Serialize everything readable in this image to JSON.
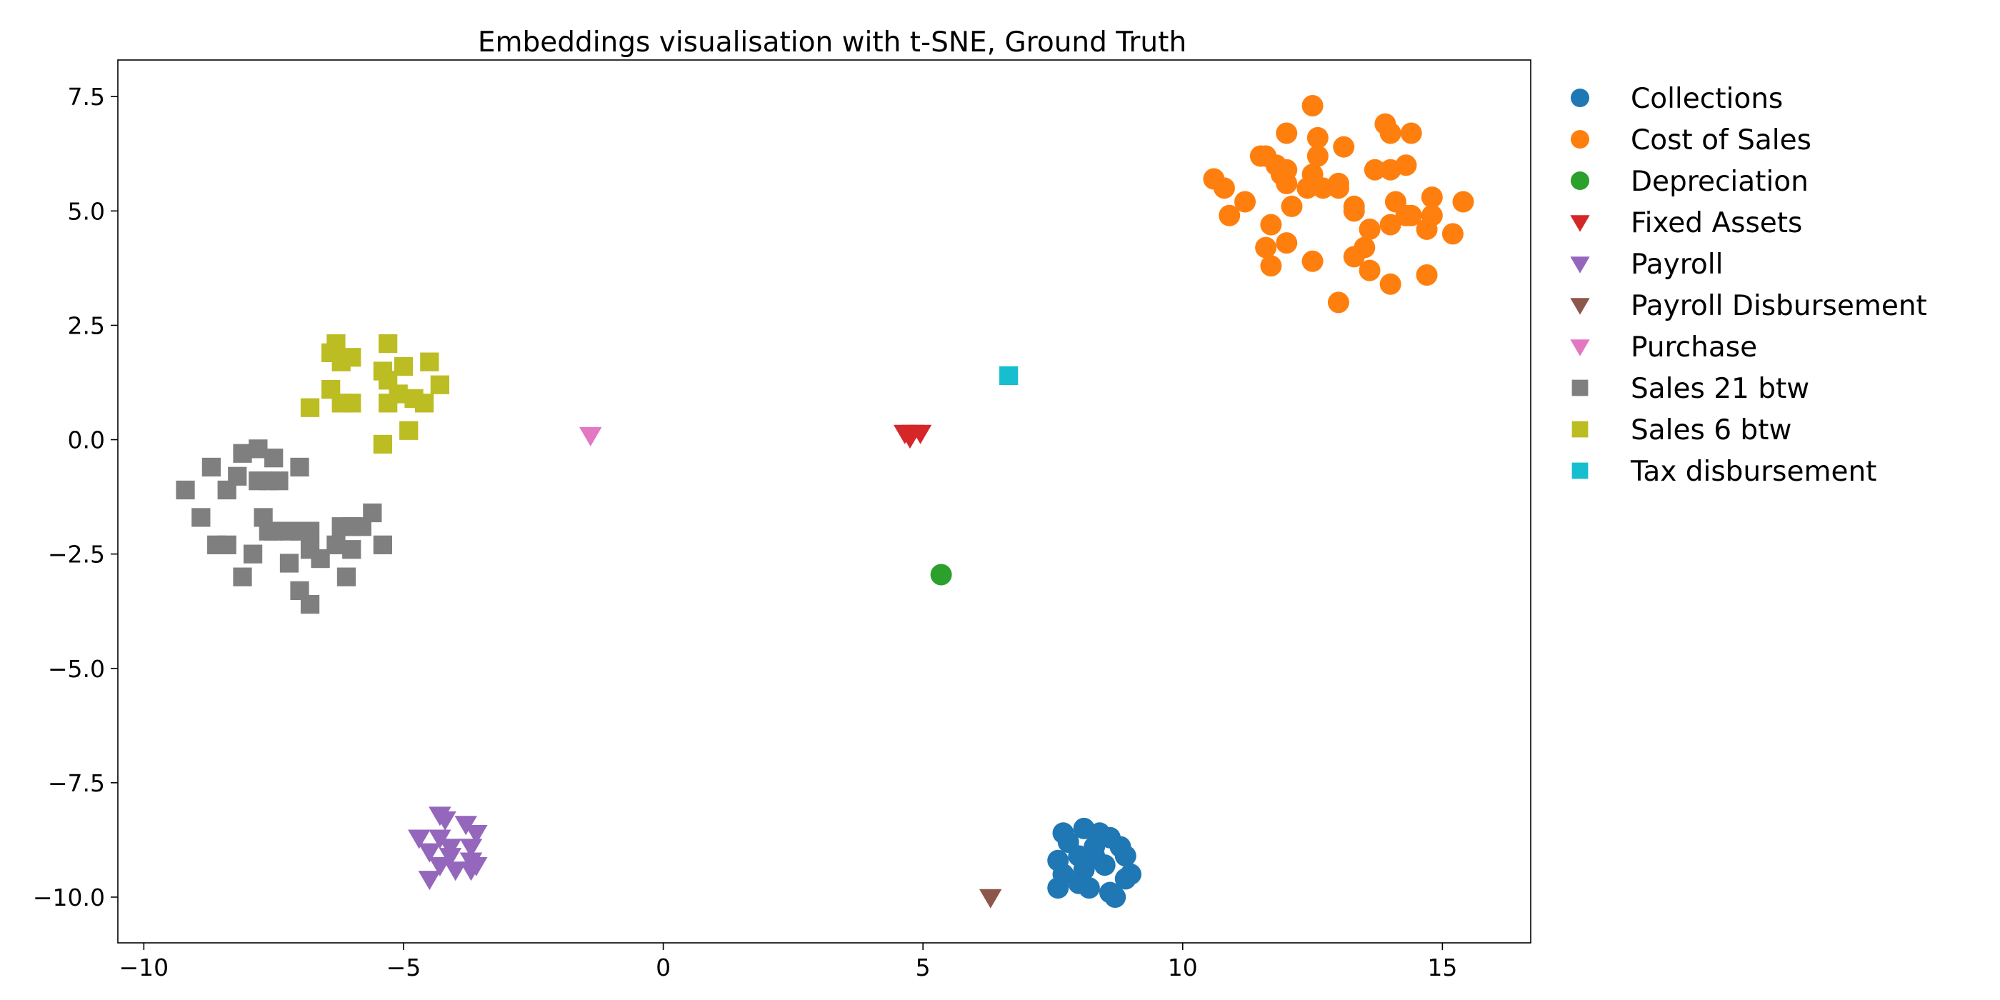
{
  "chart_data": {
    "type": "scatter",
    "title": "Embeddings visualisation with t-SNE, Ground Truth",
    "xlabel": "",
    "ylabel": "",
    "xlim": [
      -10.5,
      16.7
    ],
    "ylim": [
      -11.0,
      8.3
    ],
    "xticks": [
      -10,
      -5,
      0,
      5,
      10,
      15
    ],
    "xtick_labels": [
      "−10",
      "−5",
      "0",
      "5",
      "10",
      "15"
    ],
    "yticks": [
      7.5,
      5.0,
      2.5,
      0.0,
      -2.5,
      -5.0,
      -7.5,
      -10.0
    ],
    "ytick_labels": [
      "7.5",
      "5.0",
      "2.5",
      "0.0",
      "−2.5",
      "−5.0",
      "−7.5",
      "−10.0"
    ],
    "grid": false,
    "legend_position": "outside-right",
    "series": [
      {
        "name": "Collections",
        "marker": "circle",
        "color": "#1f77b4",
        "points": [
          [
            7.7,
            -8.6
          ],
          [
            7.8,
            -8.8
          ],
          [
            8.1,
            -8.5
          ],
          [
            8.4,
            -8.6
          ],
          [
            8.6,
            -8.7
          ],
          [
            8.3,
            -8.9
          ],
          [
            8.8,
            -8.9
          ],
          [
            8.9,
            -9.1
          ],
          [
            7.6,
            -9.2
          ],
          [
            8.0,
            -9.1
          ],
          [
            8.3,
            -9.1
          ],
          [
            8.5,
            -9.3
          ],
          [
            8.1,
            -9.4
          ],
          [
            7.7,
            -9.5
          ],
          [
            9.0,
            -9.5
          ],
          [
            8.9,
            -9.6
          ],
          [
            8.0,
            -9.7
          ],
          [
            8.2,
            -9.8
          ],
          [
            8.6,
            -9.9
          ],
          [
            8.7,
            -10.0
          ],
          [
            7.6,
            -9.8
          ]
        ]
      },
      {
        "name": "Cost of Sales",
        "marker": "circle",
        "color": "#ff7f0e",
        "points": [
          [
            12.5,
            7.3
          ],
          [
            13.9,
            6.9
          ],
          [
            14.0,
            6.7
          ],
          [
            14.4,
            6.7
          ],
          [
            12.0,
            6.7
          ],
          [
            12.6,
            6.6
          ],
          [
            13.1,
            6.4
          ],
          [
            11.5,
            6.2
          ],
          [
            11.6,
            6.2
          ],
          [
            11.8,
            6.0
          ],
          [
            12.0,
            5.9
          ],
          [
            12.6,
            6.2
          ],
          [
            13.7,
            5.9
          ],
          [
            14.0,
            5.9
          ],
          [
            14.3,
            6.0
          ],
          [
            10.6,
            5.7
          ],
          [
            10.8,
            5.5
          ],
          [
            11.9,
            5.8
          ],
          [
            12.0,
            5.6
          ],
          [
            12.4,
            5.5
          ],
          [
            12.7,
            5.5
          ],
          [
            13.0,
            5.6
          ],
          [
            12.5,
            5.8
          ],
          [
            13.3,
            5.1
          ],
          [
            11.2,
            5.2
          ],
          [
            12.1,
            5.1
          ],
          [
            13.0,
            5.5
          ],
          [
            14.1,
            5.2
          ],
          [
            14.3,
            4.9
          ],
          [
            14.8,
            5.3
          ],
          [
            15.4,
            5.2
          ],
          [
            10.9,
            4.9
          ],
          [
            13.3,
            5.0
          ],
          [
            14.4,
            4.9
          ],
          [
            14.8,
            4.9
          ],
          [
            11.7,
            4.7
          ],
          [
            13.6,
            4.6
          ],
          [
            14.0,
            4.7
          ],
          [
            14.7,
            4.6
          ],
          [
            15.2,
            4.5
          ],
          [
            11.6,
            4.2
          ],
          [
            12.0,
            4.3
          ],
          [
            13.5,
            4.2
          ],
          [
            13.3,
            4.0
          ],
          [
            11.7,
            3.8
          ],
          [
            12.5,
            3.9
          ],
          [
            13.6,
            3.7
          ],
          [
            14.7,
            3.6
          ],
          [
            14.0,
            3.4
          ],
          [
            13.0,
            3.0
          ]
        ]
      },
      {
        "name": "Depreciation",
        "marker": "circle",
        "color": "#2ca02c",
        "points": [
          [
            5.35,
            -2.95
          ]
        ]
      },
      {
        "name": "Fixed Assets",
        "marker": "triangle-down",
        "color": "#d62728",
        "points": [
          [
            4.65,
            0.15
          ],
          [
            4.8,
            0.15
          ],
          [
            4.95,
            0.15
          ],
          [
            4.75,
            0.05
          ]
        ]
      },
      {
        "name": "Payroll",
        "marker": "triangle-down",
        "color": "#9467bd",
        "points": [
          [
            -4.3,
            -8.2
          ],
          [
            -4.2,
            -8.3
          ],
          [
            -3.8,
            -8.4
          ],
          [
            -3.6,
            -8.6
          ],
          [
            -4.7,
            -8.7
          ],
          [
            -4.3,
            -8.7
          ],
          [
            -4.1,
            -8.9
          ],
          [
            -3.7,
            -8.9
          ],
          [
            -4.5,
            -9.0
          ],
          [
            -4.1,
            -9.1
          ],
          [
            -3.7,
            -9.2
          ],
          [
            -4.3,
            -9.3
          ],
          [
            -3.6,
            -9.3
          ],
          [
            -4.0,
            -9.4
          ],
          [
            -3.7,
            -9.4
          ],
          [
            -4.5,
            -9.6
          ]
        ]
      },
      {
        "name": "Payroll Disbursement",
        "marker": "triangle-down",
        "color": "#8c564b",
        "points": [
          [
            6.3,
            -10.0
          ]
        ]
      },
      {
        "name": "Purchase",
        "marker": "triangle-down",
        "color": "#e377c2",
        "points": [
          [
            -1.4,
            0.1
          ]
        ]
      },
      {
        "name": "Sales 21 btw",
        "marker": "square",
        "color": "#7f7f7f",
        "points": [
          [
            -7.8,
            -0.2
          ],
          [
            -8.1,
            -0.3
          ],
          [
            -7.5,
            -0.4
          ],
          [
            -8.7,
            -0.6
          ],
          [
            -7.0,
            -0.6
          ],
          [
            -8.2,
            -0.8
          ],
          [
            -7.6,
            -0.9
          ],
          [
            -7.8,
            -0.9
          ],
          [
            -7.4,
            -0.9
          ],
          [
            -9.2,
            -1.1
          ],
          [
            -8.4,
            -1.1
          ],
          [
            -5.6,
            -1.6
          ],
          [
            -8.9,
            -1.7
          ],
          [
            -7.7,
            -1.7
          ],
          [
            -7.6,
            -2.0
          ],
          [
            -7.5,
            -2.0
          ],
          [
            -7.2,
            -2.0
          ],
          [
            -7.0,
            -2.0
          ],
          [
            -6.8,
            -2.0
          ],
          [
            -6.2,
            -1.9
          ],
          [
            -6.0,
            -1.9
          ],
          [
            -5.8,
            -1.9
          ],
          [
            -8.6,
            -2.3
          ],
          [
            -8.4,
            -2.3
          ],
          [
            -6.8,
            -2.4
          ],
          [
            -6.3,
            -2.3
          ],
          [
            -6.0,
            -2.4
          ],
          [
            -5.4,
            -2.3
          ],
          [
            -7.9,
            -2.5
          ],
          [
            -6.6,
            -2.6
          ],
          [
            -7.2,
            -2.7
          ],
          [
            -8.1,
            -3.0
          ],
          [
            -6.1,
            -3.0
          ],
          [
            -7.0,
            -3.3
          ],
          [
            -6.8,
            -3.6
          ]
        ]
      },
      {
        "name": "Sales 6 btw",
        "marker": "square",
        "color": "#bcbd22",
        "points": [
          [
            -6.3,
            2.1
          ],
          [
            -5.3,
            2.1
          ],
          [
            -6.4,
            1.9
          ],
          [
            -6.0,
            1.8
          ],
          [
            -6.2,
            1.7
          ],
          [
            -4.5,
            1.7
          ],
          [
            -5.4,
            1.5
          ],
          [
            -5.0,
            1.6
          ],
          [
            -5.3,
            1.3
          ],
          [
            -4.3,
            1.2
          ],
          [
            -6.4,
            1.1
          ],
          [
            -5.1,
            1.0
          ],
          [
            -4.8,
            0.9
          ],
          [
            -6.2,
            0.8
          ],
          [
            -6.0,
            0.8
          ],
          [
            -5.3,
            0.8
          ],
          [
            -4.6,
            0.8
          ],
          [
            -6.8,
            0.7
          ],
          [
            -4.9,
            0.2
          ],
          [
            -5.4,
            -0.1
          ]
        ]
      },
      {
        "name": "Tax disbursement",
        "marker": "square",
        "color": "#17becf",
        "points": [
          [
            6.65,
            1.4
          ]
        ]
      }
    ]
  }
}
